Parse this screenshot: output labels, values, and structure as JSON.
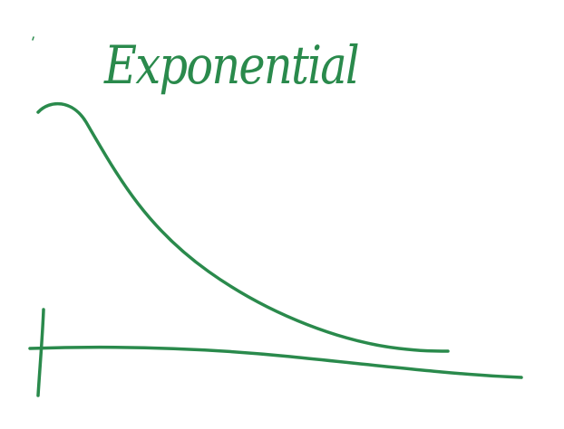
{
  "title": "Exponential"
}
